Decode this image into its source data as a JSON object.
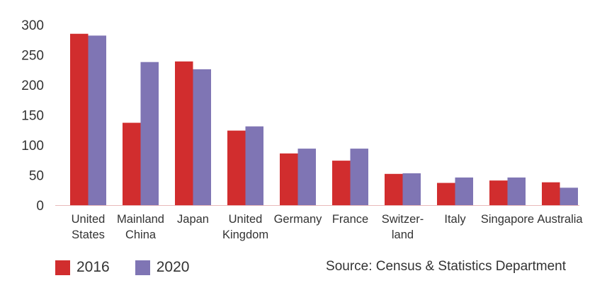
{
  "chart_data": {
    "type": "bar",
    "categories": [
      [
        "United",
        "States"
      ],
      [
        "Mainland",
        "China"
      ],
      [
        "Japan"
      ],
      [
        "United",
        "Kingdom"
      ],
      [
        "Germany"
      ],
      [
        "France"
      ],
      [
        "Switzer-",
        "land"
      ],
      [
        "Italy"
      ],
      [
        "Singapore"
      ],
      [
        "Australia"
      ]
    ],
    "series": [
      {
        "name": "2016",
        "color": "#d12d2e",
        "values": [
          285,
          137,
          239,
          124,
          86,
          74,
          52,
          37,
          41,
          38
        ]
      },
      {
        "name": "2020",
        "color": "#7f75b4",
        "values": [
          282,
          238,
          226,
          131,
          94,
          94,
          53,
          46,
          46,
          29
        ]
      }
    ],
    "ylim": [
      0,
      300
    ],
    "yticks": [
      0,
      50,
      100,
      150,
      200,
      250,
      300
    ],
    "grid": false,
    "legend_position": "bottom-left"
  },
  "source_text": "Source: Census & Statistics Department"
}
